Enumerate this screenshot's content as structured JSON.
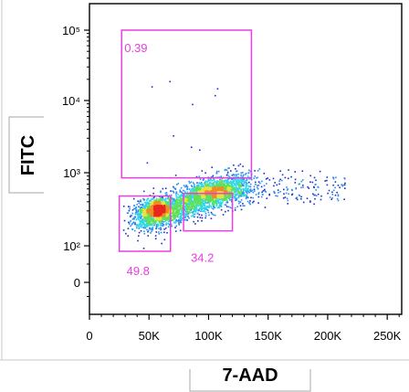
{
  "colors": {
    "gate": "#e83fe0",
    "axis": "#000000",
    "frame_line": "#c8c8c8",
    "density_scale": [
      "#1c2fd0",
      "#2a8ef0",
      "#2fd7e8",
      "#5ee05a",
      "#e8e23a",
      "#f08a24",
      "#e8271e"
    ]
  },
  "chart_data": {
    "type": "scatter",
    "xlabel": "7-AAD",
    "ylabel": "FITC",
    "x_scale": "linear",
    "y_scale": "biexponential",
    "xlim": [
      0,
      262144
    ],
    "x_ticks": [
      {
        "value": 0,
        "label": "0"
      },
      {
        "value": 50000,
        "label": "50K"
      },
      {
        "value": 100000,
        "label": "100K"
      },
      {
        "value": 150000,
        "label": "150K"
      },
      {
        "value": 200000,
        "label": "200K"
      },
      {
        "value": 250000,
        "label": "250K"
      }
    ],
    "y_ticks": [
      {
        "value": 0,
        "label": "0"
      },
      {
        "value": 100,
        "label": "10²"
      },
      {
        "value": 1000,
        "label": "10³"
      },
      {
        "value": 10000,
        "label": "10⁴"
      },
      {
        "value": 100000,
        "label": "10⁵"
      }
    ],
    "grid": false,
    "legend": "none",
    "gates": [
      {
        "name": "upper-left",
        "label": "0.39",
        "x_range": [
          27000,
          136000
        ],
        "y_range": [
          850,
          100000
        ]
      },
      {
        "name": "lower-left",
        "label": "49.8",
        "x_range": [
          25000,
          68000
        ],
        "y_range": [
          85,
          480
        ]
      },
      {
        "name": "lower-right",
        "label": "34.2",
        "x_range": [
          79000,
          120000
        ],
        "y_range": [
          160,
          520
        ]
      }
    ],
    "populations": [
      {
        "name": "main-cluster",
        "x_range": [
          40000,
          130000
        ],
        "y_range": [
          190,
          800
        ],
        "density": "high"
      },
      {
        "name": "tail",
        "x_range": [
          130000,
          215000
        ],
        "y_range": [
          350,
          900
        ],
        "density": "sparse"
      }
    ]
  }
}
